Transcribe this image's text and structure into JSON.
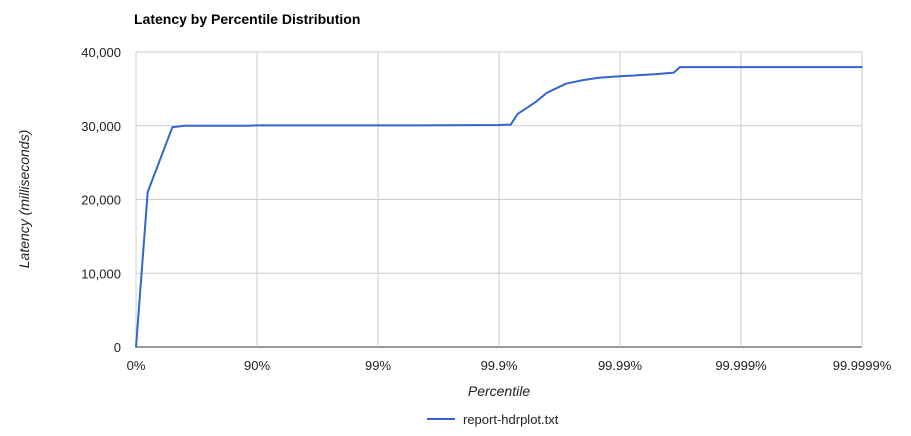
{
  "chart_data": {
    "type": "line",
    "title": "Latency by Percentile Distribution",
    "xlabel": "Percentile",
    "ylabel": "Latency (milliseconds)",
    "x_tick_labels": [
      "0%",
      "90%",
      "99%",
      "99.9%",
      "99.99%",
      "99.999%",
      "99.9999%"
    ],
    "x_scale": "log-inverse (1/(1-percentile))",
    "y_tick_labels": [
      "0",
      "10,000",
      "20,000",
      "30,000",
      "40,000"
    ],
    "ylim": [
      0,
      40000
    ],
    "grid": true,
    "legend_position": "bottom",
    "series": [
      {
        "name": "report-hdrplot.txt",
        "color": "#3366cc",
        "points": [
          [
            0,
            0
          ],
          [
            20,
            21000
          ],
          [
            50,
            29800
          ],
          [
            60,
            30000
          ],
          [
            88,
            30000
          ],
          [
            90,
            30050
          ],
          [
            99.5,
            30050
          ],
          [
            99.9,
            30100
          ],
          [
            99.92,
            30150
          ],
          [
            99.93,
            31600
          ],
          [
            99.95,
            33200
          ],
          [
            99.96,
            34500
          ],
          [
            99.972,
            35700
          ],
          [
            99.98,
            36200
          ],
          [
            99.985,
            36500
          ],
          [
            99.99,
            36700
          ],
          [
            99.995,
            37000
          ],
          [
            99.9964,
            37200
          ],
          [
            99.9968,
            37950
          ],
          [
            99.9999,
            37950
          ]
        ]
      }
    ]
  }
}
